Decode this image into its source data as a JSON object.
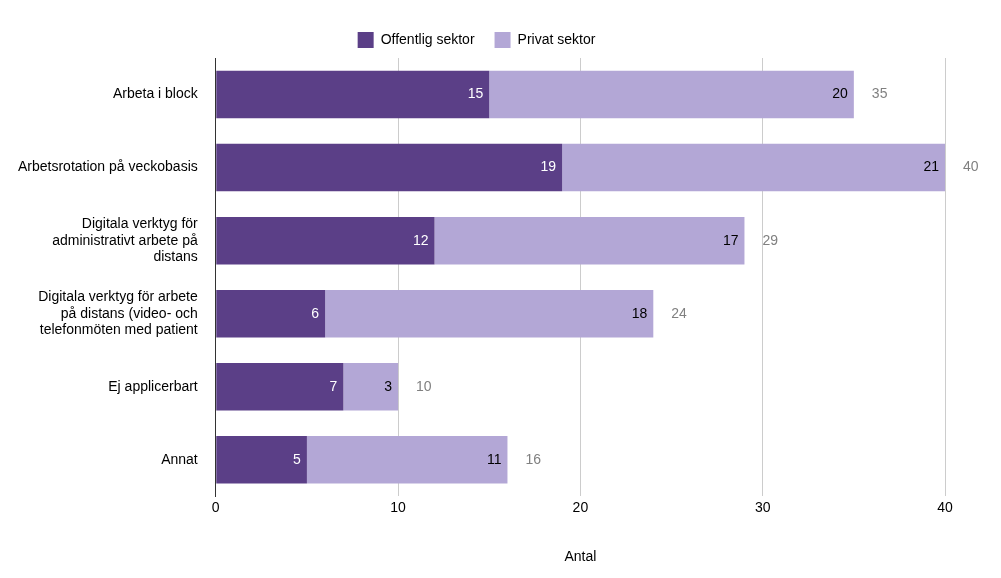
{
  "chart_data": {
    "type": "bar",
    "orientation": "horizontal",
    "stacked": true,
    "xlabel": "Antal",
    "categories": [
      "Arbeta i block",
      "Arbetsrotation på veckobasis",
      "Digitala verktyg för administrativt arbete på distans",
      "Digitala verktyg för arbete på distans (video- och telefonmöten med patient",
      "Ej applicerbart",
      "Annat"
    ],
    "series": [
      {
        "name": "Offentlig sektor",
        "color": "#5b3f87",
        "values": [
          15,
          19,
          12,
          6,
          7,
          5
        ]
      },
      {
        "name": "Privat sektor",
        "color": "#b3a7d6",
        "values": [
          20,
          21,
          17,
          18,
          3,
          11
        ]
      }
    ],
    "totals": [
      "35",
      "40",
      "29",
      "24",
      "10",
      "16"
    ],
    "xlim": [
      0,
      40
    ],
    "xticks": [
      0,
      10,
      20,
      30,
      40
    ],
    "grid": "x",
    "legend": "top",
    "data_labels": true
  }
}
